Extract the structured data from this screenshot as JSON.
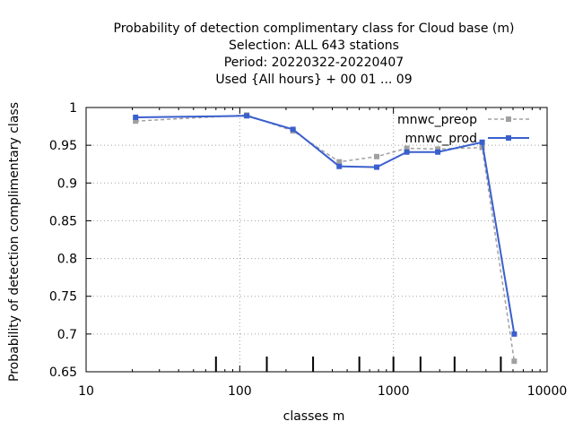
{
  "chart_data": {
    "type": "line",
    "title_lines": [
      "Probability of detection complimentary class  for Cloud base (m)",
      "Selection: ALL    643 stations",
      "Period: 20220322-20220407",
      "Used {All hours} + 00 01 ... 09"
    ],
    "xlabel": "classes m",
    "ylabel": "Probability of detection complimentary class",
    "x_scale": "log",
    "xlim": [
      10,
      10000
    ],
    "ylim": [
      0.65,
      1.0
    ],
    "x_ticks": [
      10,
      100,
      1000,
      10000
    ],
    "x_tick_labels": [
      "10",
      "100",
      "1000",
      "10000"
    ],
    "y_ticks": [
      0.65,
      0.7,
      0.75,
      0.8,
      0.85,
      0.9,
      0.95,
      1.0
    ],
    "y_tick_labels": [
      "0.65",
      "0.7",
      "0.75",
      "0.8",
      "0.85",
      "0.9",
      "0.95",
      "1"
    ],
    "grid": true,
    "legend_position": "top-right",
    "class_boundaries": [
      70,
      150,
      300,
      600,
      1000,
      1500,
      2500,
      5000
    ],
    "series": [
      {
        "name": "mnwc_preop",
        "color": "#a0a0a0",
        "dash": "dashed",
        "x": [
          21,
          111,
          222,
          444,
          778,
          1222,
          1944,
          3778,
          6111
        ],
        "y": [
          0.982,
          0.99,
          0.969,
          0.928,
          0.935,
          0.946,
          0.945,
          0.947,
          0.664
        ]
      },
      {
        "name": "mnwc_prod",
        "color": "#3a5fcd",
        "dash": "solid",
        "x": [
          21,
          111,
          222,
          444,
          778,
          1222,
          1944,
          3778,
          6111
        ],
        "y": [
          0.987,
          0.989,
          0.971,
          0.922,
          0.921,
          0.941,
          0.941,
          0.954,
          0.7
        ]
      }
    ]
  }
}
